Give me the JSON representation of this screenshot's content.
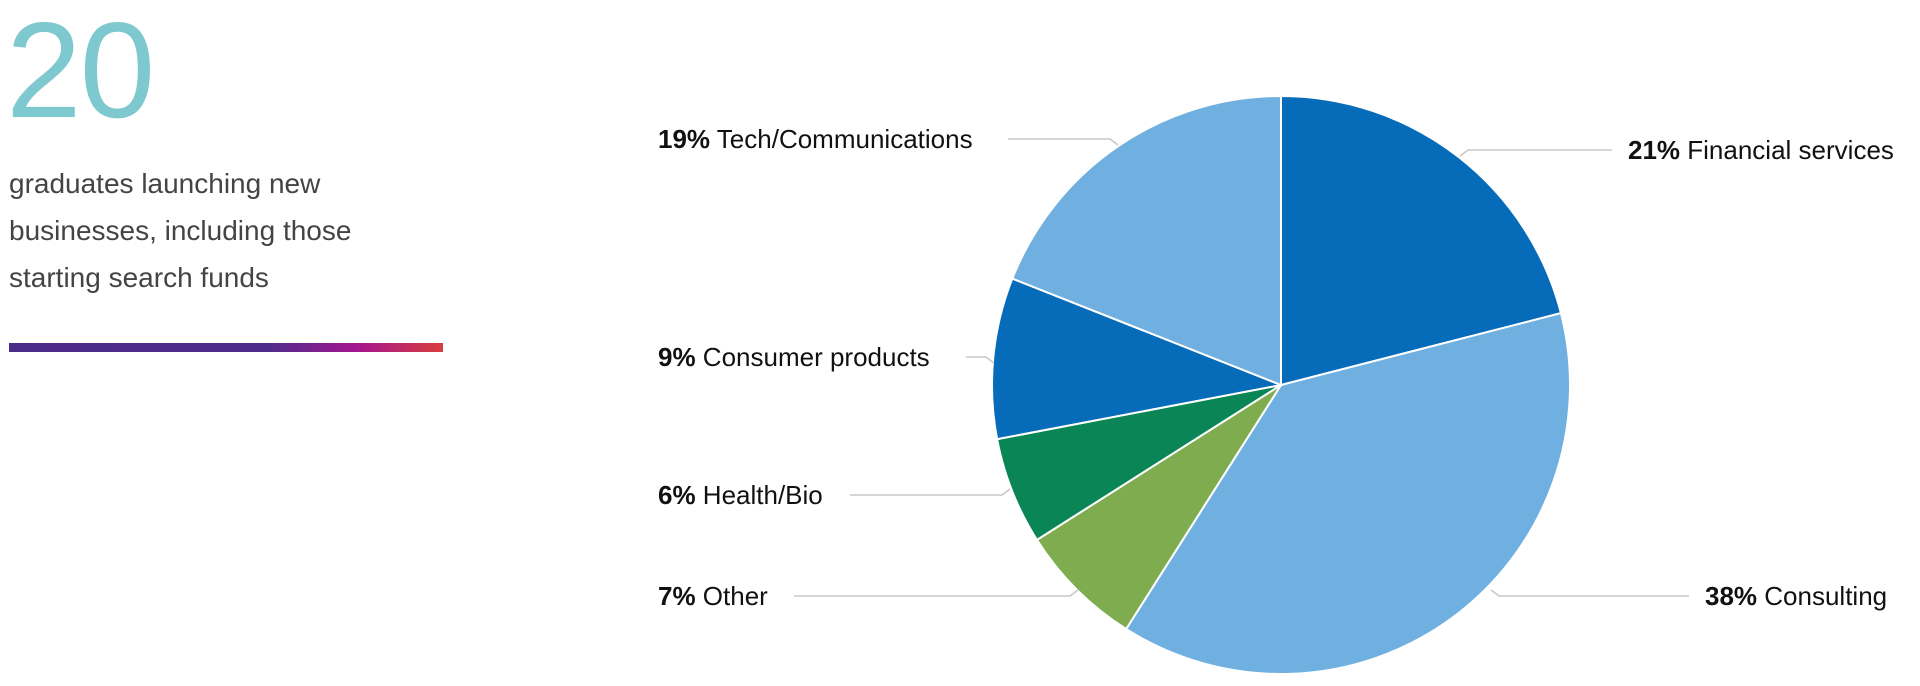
{
  "stat": {
    "number": "20",
    "caption": "graduates launching new businesses, including those starting search funds"
  },
  "chart_data": {
    "type": "pie",
    "title": "",
    "start": "top, clockwise",
    "slices": [
      {
        "label": "Financial services",
        "pct_text": "21%",
        "value": 21,
        "color": "#066bb8"
      },
      {
        "label": "Consulting",
        "pct_text": "38%",
        "value": 38,
        "color": "#6fb0e1"
      },
      {
        "label": "Other",
        "pct_text": "7%",
        "value": 7,
        "color": "#80ac50"
      },
      {
        "label": "Health/Bio",
        "pct_text": "6%",
        "value": 6,
        "color": "#0a8656"
      },
      {
        "label": "Consumer products",
        "pct_text": "9%",
        "value": 9,
        "color": "#066bb8"
      },
      {
        "label": "Tech/Communications",
        "pct_text": "19%",
        "value": 19,
        "color": "#6fb0e1"
      }
    ]
  }
}
